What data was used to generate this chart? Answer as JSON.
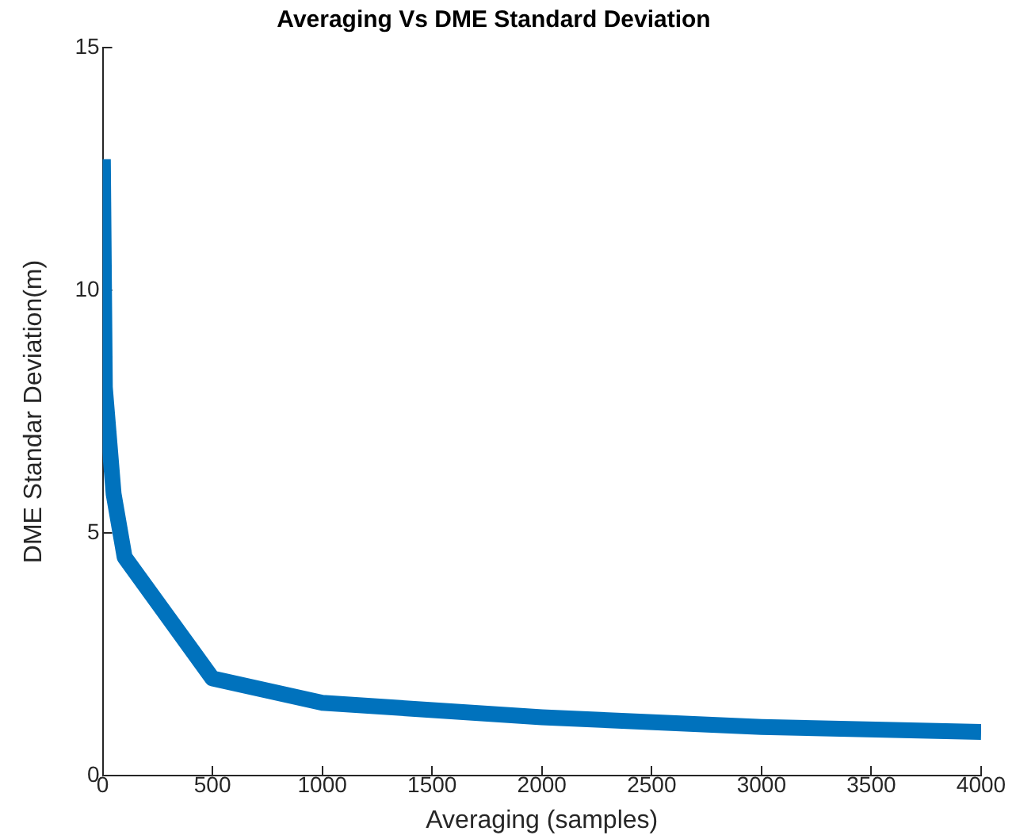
{
  "chart_data": {
    "type": "line",
    "title": "Averaging Vs DME Standard Deviation",
    "xlabel": "Averaging (samples)",
    "ylabel": "DME Standar Deviation(m)",
    "x": [
      1,
      10,
      50,
      100,
      500,
      1000,
      2000,
      3000,
      4000
    ],
    "series": [
      {
        "color": "#0072bd",
        "values": [
          12.7,
          8.0,
          5.8,
          4.5,
          2.0,
          1.5,
          1.2,
          1.0,
          0.9
        ]
      }
    ],
    "xlim": [
      0,
      4000
    ],
    "xticks": [
      0,
      500,
      1000,
      1500,
      2000,
      2500,
      3000,
      3500,
      4000
    ],
    "ylim": [
      0,
      15
    ],
    "yticks": [
      0,
      5,
      10,
      15
    ],
    "grid": false,
    "legend": false,
    "marker": "none",
    "line_style": "solid"
  }
}
